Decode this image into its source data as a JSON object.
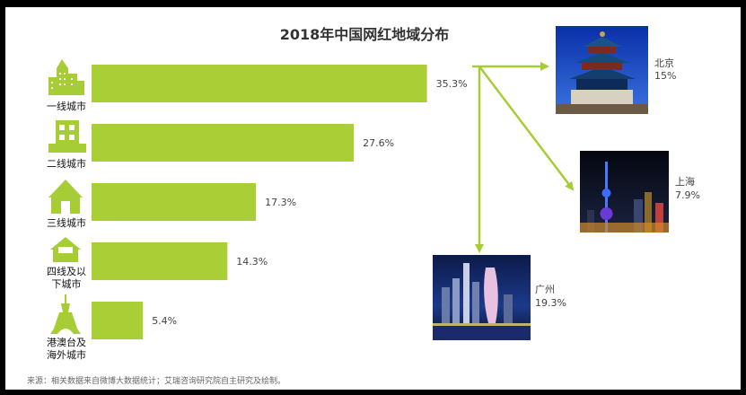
{
  "header_cut_text": "...",
  "colors": {
    "bar": "#aacf36",
    "icon": "#a6cd35",
    "arrow": "#a6cd35",
    "text": "#333333"
  },
  "chart_data": {
    "type": "bar",
    "orientation": "horizontal",
    "title": "2018年中国网红地域分布",
    "categories": [
      {
        "lines": [
          "一线城市"
        ],
        "icon": "skyscraper-icon"
      },
      {
        "lines": [
          "二线城市"
        ],
        "icon": "office-building-icon"
      },
      {
        "lines": [
          "三线城市"
        ],
        "icon": "house-icon"
      },
      {
        "lines": [
          "四线及以",
          "下城市"
        ],
        "icon": "small-house-icon"
      },
      {
        "lines": [
          "港澳台及",
          "海外城市"
        ],
        "icon": "tower-icon"
      }
    ],
    "values": [
      35.3,
      27.6,
      17.3,
      14.3,
      5.4
    ],
    "value_labels": [
      "35.3%",
      "27.6%",
      "17.3%",
      "14.3%",
      "5.4%"
    ],
    "xlim": [
      0,
      36
    ],
    "grid": false,
    "breakdown_of": "一线城市",
    "cities": [
      {
        "name": "北京",
        "value": 15,
        "label": "15%",
        "photo": "temple-of-heaven-photo"
      },
      {
        "name": "上海",
        "value": 7.9,
        "label": "7.9%",
        "photo": "oriental-pearl-tower-photo"
      },
      {
        "name": "广州",
        "value": 19.3,
        "label": "19.3%",
        "photo": "canton-tower-photo"
      }
    ]
  },
  "source": "来源：相关数据来自微博大数据统计；艾瑞咨询研究院自主研究及绘制。"
}
